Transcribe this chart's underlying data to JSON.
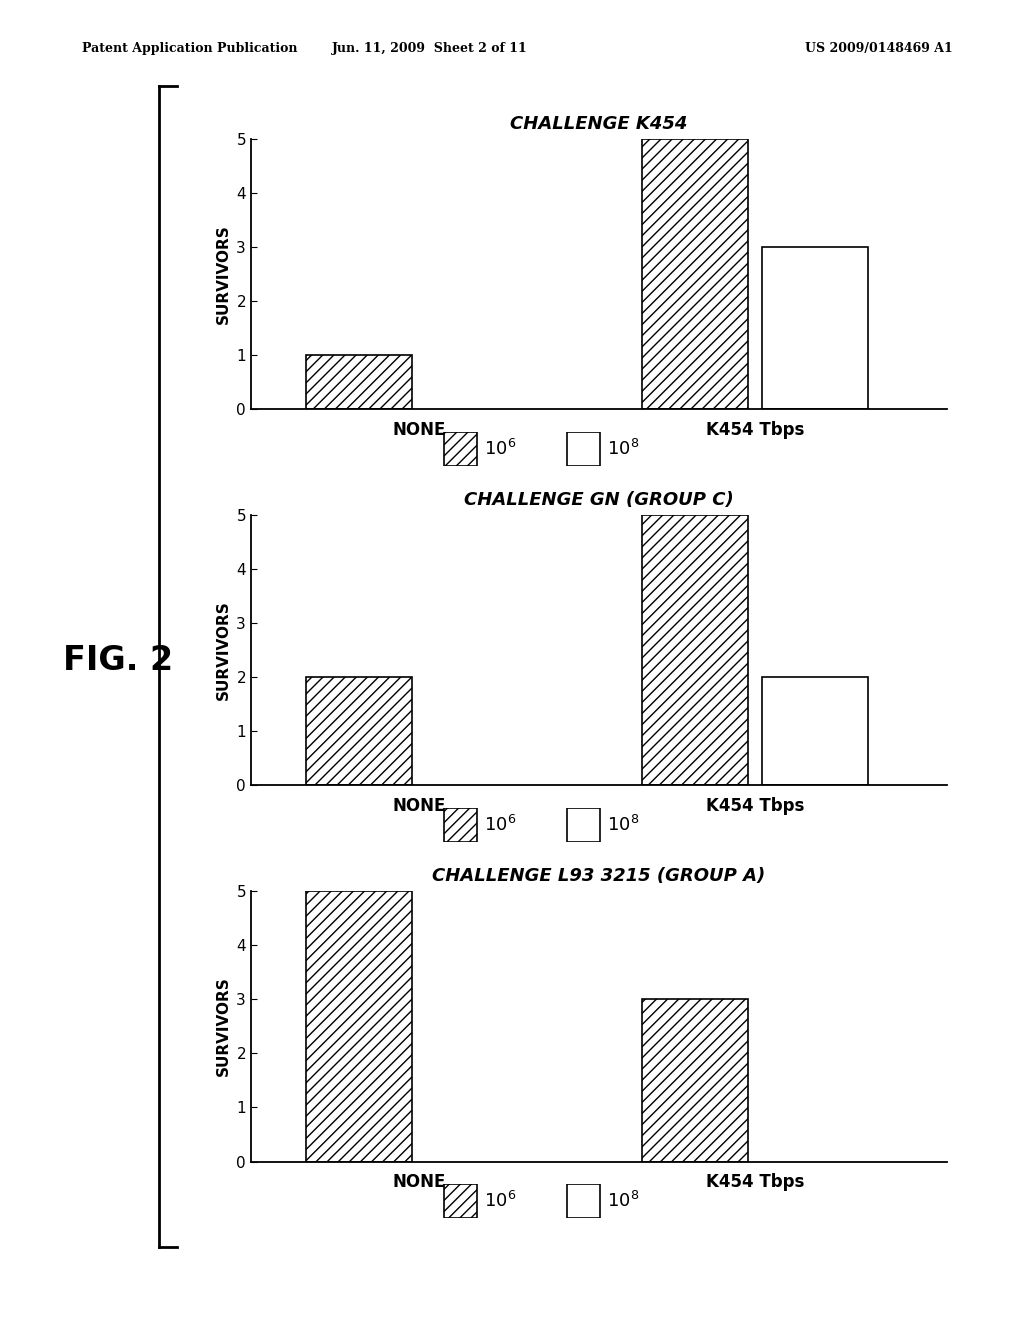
{
  "charts": [
    {
      "title": "CHALLENGE K454",
      "categories": [
        "NONE",
        "K454 Tbps"
      ],
      "values_10e6": [
        1,
        5
      ],
      "values_10e8": [
        0,
        3
      ],
      "ylim": [
        0,
        5
      ],
      "yticks": [
        0,
        1,
        2,
        3,
        4,
        5
      ]
    },
    {
      "title": "CHALLENGE GN (GROUP C)",
      "categories": [
        "NONE",
        "K454 Tbps"
      ],
      "values_10e6": [
        2,
        5
      ],
      "values_10e8": [
        0,
        2
      ],
      "ylim": [
        0,
        5
      ],
      "yticks": [
        0,
        1,
        2,
        3,
        4,
        5
      ]
    },
    {
      "title": "CHALLENGE L93 3215 (GROUP A)",
      "categories": [
        "NONE",
        "K454 Tbps"
      ],
      "values_10e6": [
        5,
        3
      ],
      "values_10e8": [
        0,
        0
      ],
      "ylim": [
        0,
        5
      ],
      "yticks": [
        0,
        1,
        2,
        3,
        4,
        5
      ]
    }
  ],
  "ylabel": "SURVIVORS",
  "hatch_pattern": "///",
  "bar_width": 0.22,
  "bar_color_hatched": "white",
  "bar_color_solid": "white",
  "bar_edge_color": "black",
  "background_color": "white",
  "header_left": "Patent Application Publication",
  "header_mid": "Jun. 11, 2009  Sheet 2 of 11",
  "header_right": "US 2009/0148469 A1",
  "fig2_label": "FIG. 2"
}
